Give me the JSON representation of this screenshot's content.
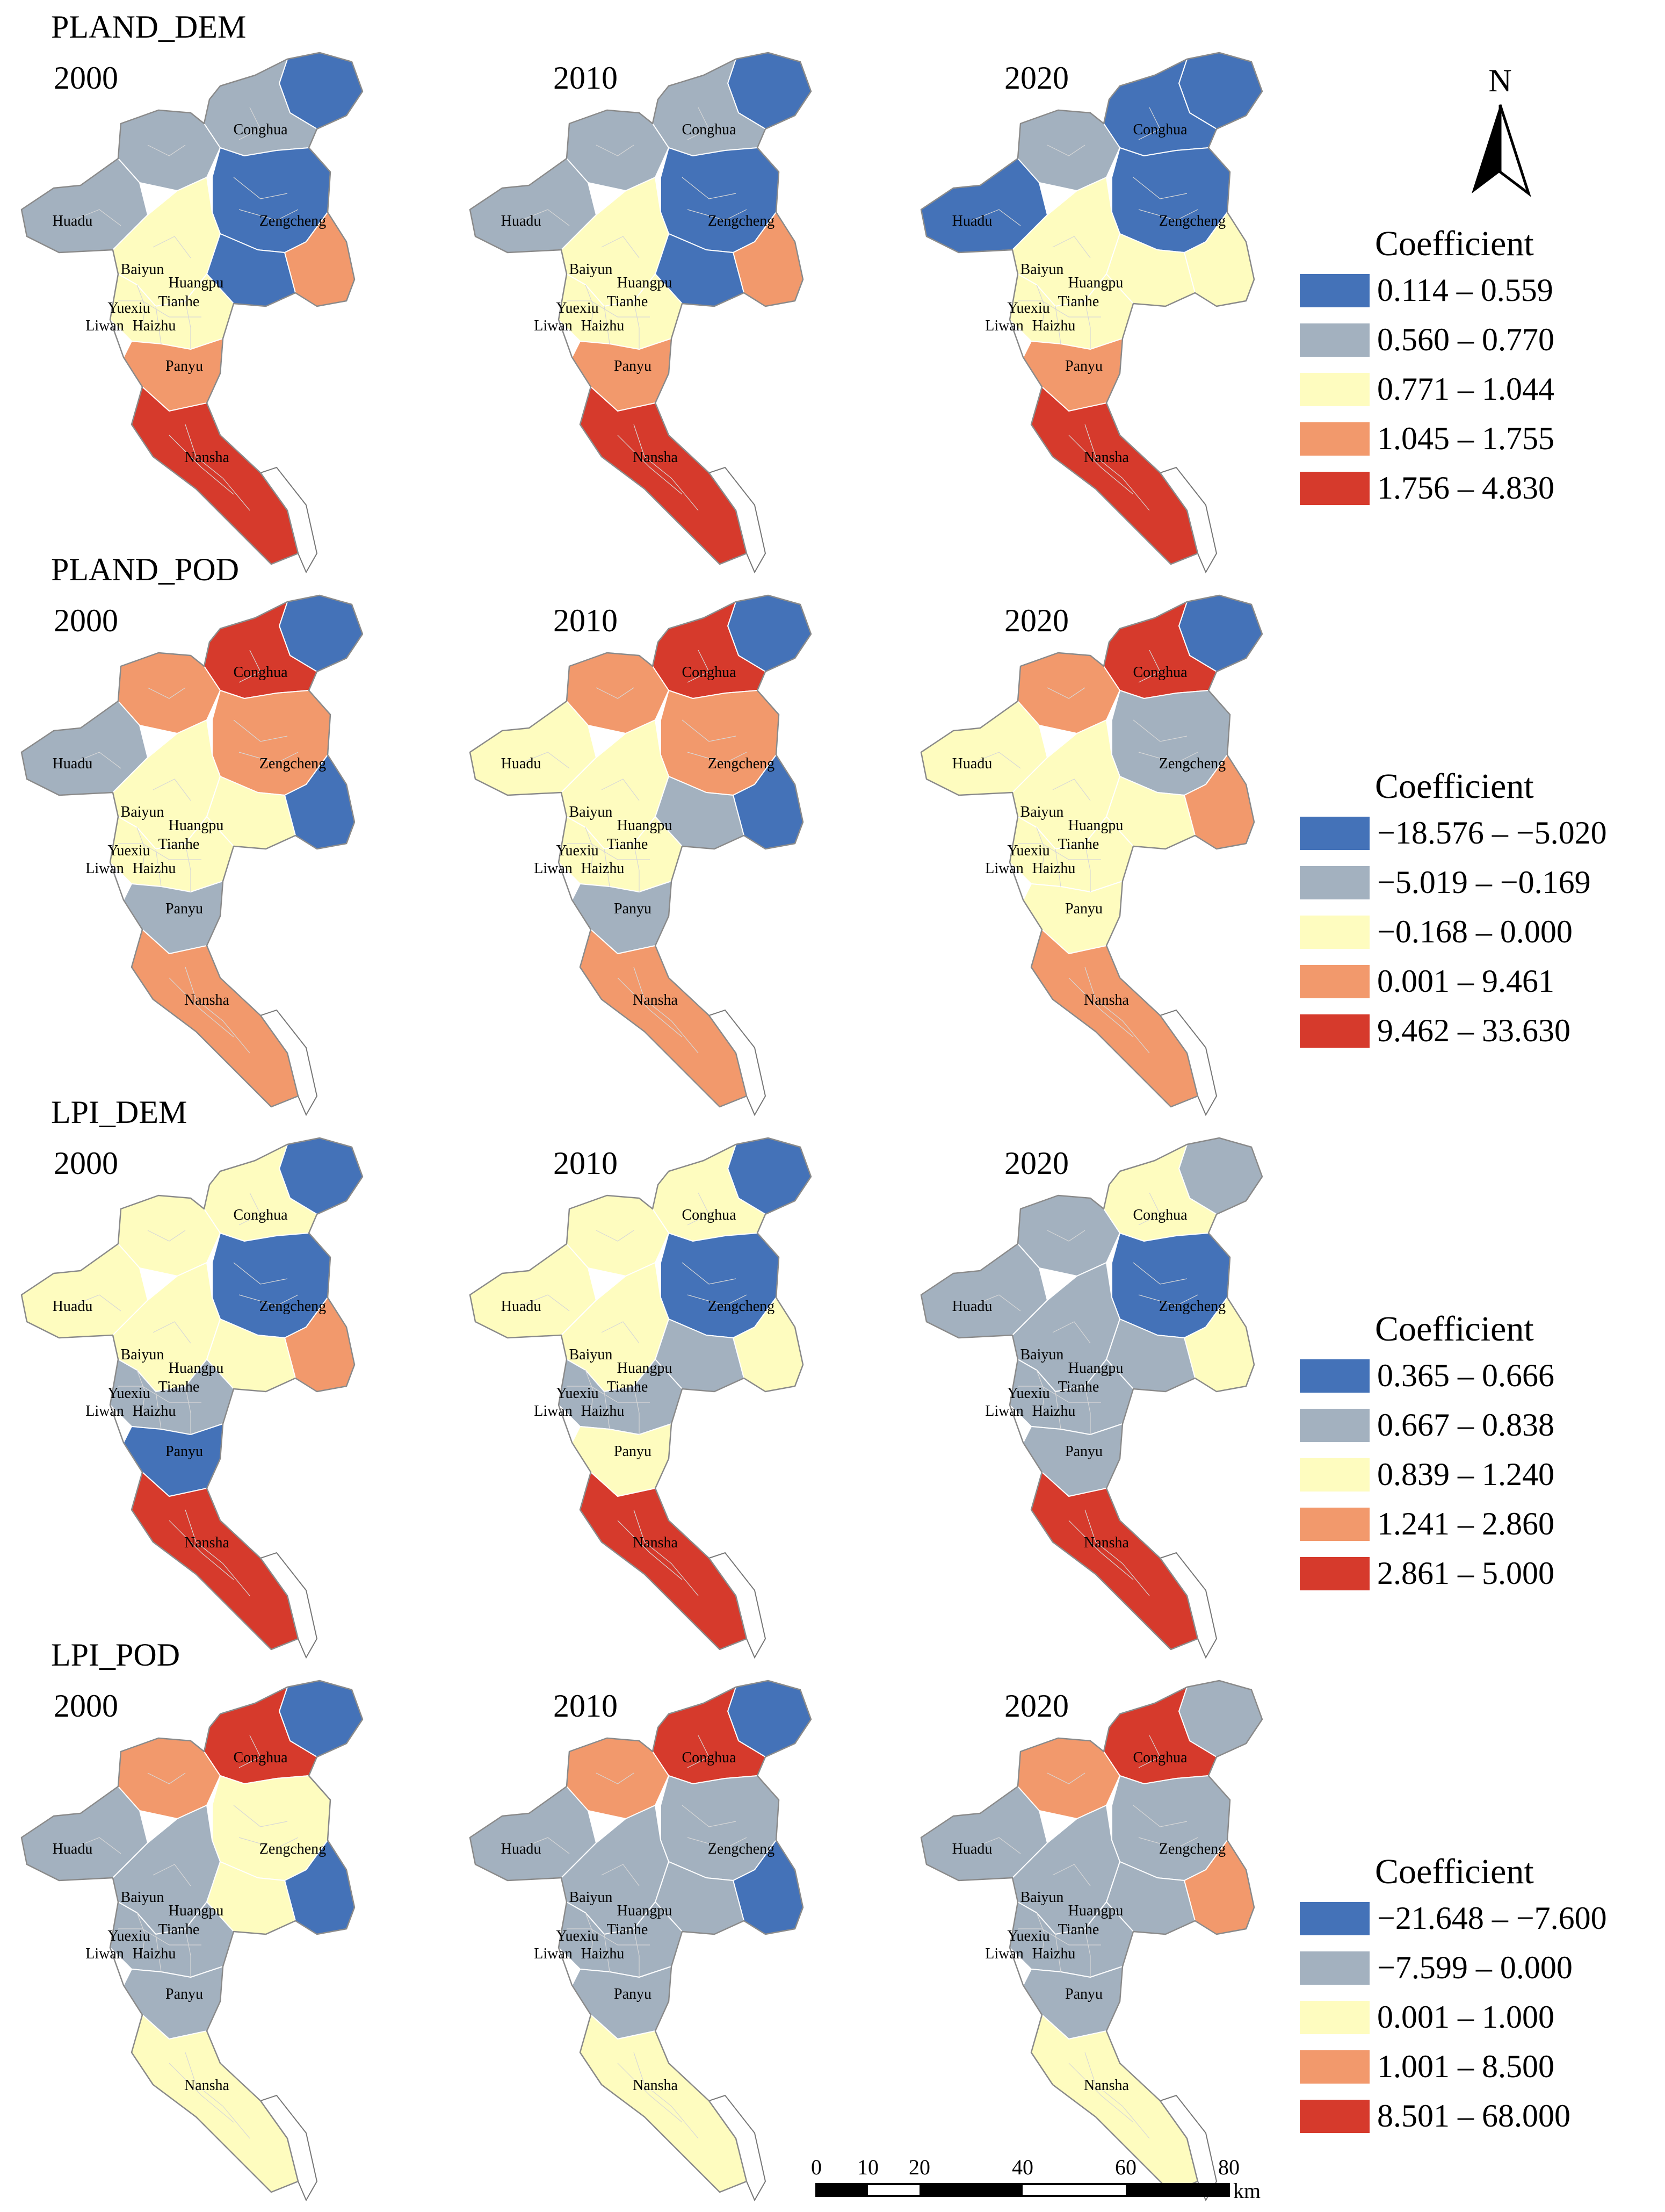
{
  "rows": [
    {
      "id": "pland-dem",
      "title": "PLAND_DEM",
      "years": [
        "2000",
        "2010",
        "2020"
      ],
      "legend": {
        "title": "Coefficient",
        "classes": [
          {
            "label": "0.114 – 0.559",
            "color": "#4472b8"
          },
          {
            "label": "0.560 – 0.770",
            "color": "#a3b1bf"
          },
          {
            "label": "0.771 – 1.044",
            "color": "#fefcbf"
          },
          {
            "label": "1.045 – 1.755",
            "color": "#f2996c"
          },
          {
            "label": "1.756 – 4.830",
            "color": "#d63a2c"
          }
        ]
      },
      "maps": [
        {
          "Conghua": 1,
          "Huadu": 1,
          "Baiyun": 2,
          "Zengcheng": 0,
          "Huangpu": 0,
          "East": 3,
          "Central": 2,
          "Panyu": 3,
          "Nansha": 4,
          "North": 1,
          "NorthEast": 0
        },
        {
          "Conghua": 1,
          "Huadu": 1,
          "Baiyun": 2,
          "Zengcheng": 0,
          "Huangpu": 0,
          "East": 3,
          "Central": 2,
          "Panyu": 3,
          "Nansha": 4,
          "North": 1,
          "NorthEast": 0
        },
        {
          "Conghua": 0,
          "Huadu": 0,
          "Baiyun": 2,
          "Zengcheng": 0,
          "Huangpu": 2,
          "East": 2,
          "Central": 2,
          "Panyu": 3,
          "Nansha": 4,
          "North": 1,
          "NorthEast": 0
        }
      ]
    },
    {
      "id": "pland-pod",
      "title": "PLAND_POD",
      "years": [
        "2000",
        "2010",
        "2020"
      ],
      "legend": {
        "title": "Coefficient",
        "classes": [
          {
            "label": "−18.576 – −5.020",
            "color": "#4472b8"
          },
          {
            "label": "−5.019 – −0.169",
            "color": "#a3b1bf"
          },
          {
            "label": "−0.168 – 0.000",
            "color": "#fefcbf"
          },
          {
            "label": "0.001 – 9.461",
            "color": "#f2996c"
          },
          {
            "label": "9.462 – 33.630",
            "color": "#d63a2c"
          }
        ]
      },
      "maps": [
        {
          "Conghua": 4,
          "Huadu": 1,
          "Baiyun": 2,
          "Zengcheng": 3,
          "Huangpu": 2,
          "East": 0,
          "Central": 2,
          "Panyu": 1,
          "Nansha": 3,
          "North": 3,
          "NorthEast": 0
        },
        {
          "Conghua": 4,
          "Huadu": 2,
          "Baiyun": 2,
          "Zengcheng": 3,
          "Huangpu": 1,
          "East": 0,
          "Central": 2,
          "Panyu": 1,
          "Nansha": 3,
          "North": 3,
          "NorthEast": 0
        },
        {
          "Conghua": 4,
          "Huadu": 2,
          "Baiyun": 2,
          "Zengcheng": 1,
          "Huangpu": 2,
          "East": 3,
          "Central": 2,
          "Panyu": 2,
          "Nansha": 3,
          "North": 3,
          "NorthEast": 0
        }
      ]
    },
    {
      "id": "lpi-dem",
      "title": "LPI_DEM",
      "years": [
        "2000",
        "2010",
        "2020"
      ],
      "legend": {
        "title": "Coefficient",
        "classes": [
          {
            "label": "0.365 – 0.666",
            "color": "#4472b8"
          },
          {
            "label": "0.667 – 0.838",
            "color": "#a3b1bf"
          },
          {
            "label": "0.839 – 1.240",
            "color": "#fefcbf"
          },
          {
            "label": "1.241 – 2.860",
            "color": "#f2996c"
          },
          {
            "label": "2.861 – 5.000",
            "color": "#d63a2c"
          }
        ]
      },
      "maps": [
        {
          "Conghua": 2,
          "Huadu": 2,
          "Baiyun": 2,
          "Zengcheng": 0,
          "Huangpu": 2,
          "East": 3,
          "Central": 1,
          "Panyu": 0,
          "Nansha": 4,
          "North": 2,
          "NorthEast": 0
        },
        {
          "Conghua": 2,
          "Huadu": 2,
          "Baiyun": 2,
          "Zengcheng": 0,
          "Huangpu": 1,
          "East": 2,
          "Central": 1,
          "Panyu": 2,
          "Nansha": 4,
          "North": 2,
          "NorthEast": 0
        },
        {
          "Conghua": 2,
          "Huadu": 1,
          "Baiyun": 1,
          "Zengcheng": 0,
          "Huangpu": 1,
          "East": 2,
          "Central": 1,
          "Panyu": 1,
          "Nansha": 4,
          "North": 1,
          "NorthEast": 1
        }
      ]
    },
    {
      "id": "lpi-pod",
      "title": "LPI_POD",
      "years": [
        "2000",
        "2010",
        "2020"
      ],
      "legend": {
        "title": "Coefficient",
        "classes": [
          {
            "label": "−21.648 – −7.600",
            "color": "#4472b8"
          },
          {
            "label": "−7.599 – 0.000",
            "color": "#a3b1bf"
          },
          {
            "label": "0.001 – 1.000",
            "color": "#fefcbf"
          },
          {
            "label": "1.001 – 8.500",
            "color": "#f2996c"
          },
          {
            "label": "8.501 – 68.000",
            "color": "#d63a2c"
          }
        ]
      },
      "maps": [
        {
          "Conghua": 4,
          "Huadu": 1,
          "Baiyun": 1,
          "Zengcheng": 2,
          "Huangpu": 2,
          "East": 0,
          "Central": 1,
          "Panyu": 1,
          "Nansha": 2,
          "North": 3,
          "NorthEast": 0
        },
        {
          "Conghua": 4,
          "Huadu": 1,
          "Baiyun": 1,
          "Zengcheng": 1,
          "Huangpu": 1,
          "East": 0,
          "Central": 1,
          "Panyu": 1,
          "Nansha": 2,
          "North": 3,
          "NorthEast": 0
        },
        {
          "Conghua": 4,
          "Huadu": 1,
          "Baiyun": 1,
          "Zengcheng": 1,
          "Huangpu": 1,
          "East": 3,
          "Central": 1,
          "Panyu": 1,
          "Nansha": 2,
          "North": 3,
          "NorthEast": 1
        }
      ]
    }
  ],
  "district_labels": [
    "Conghua",
    "Huadu",
    "Zengcheng",
    "Baiyun",
    "Huangpu",
    "Tianhe",
    "Yuexiu",
    "Liwan",
    "Haizhu",
    "Panyu",
    "Nansha"
  ],
  "north_arrow": {
    "label": "N"
  },
  "scale_bar": {
    "ticks": [
      "0",
      "10",
      "20",
      "40",
      "60",
      "80"
    ],
    "unit": "km"
  }
}
